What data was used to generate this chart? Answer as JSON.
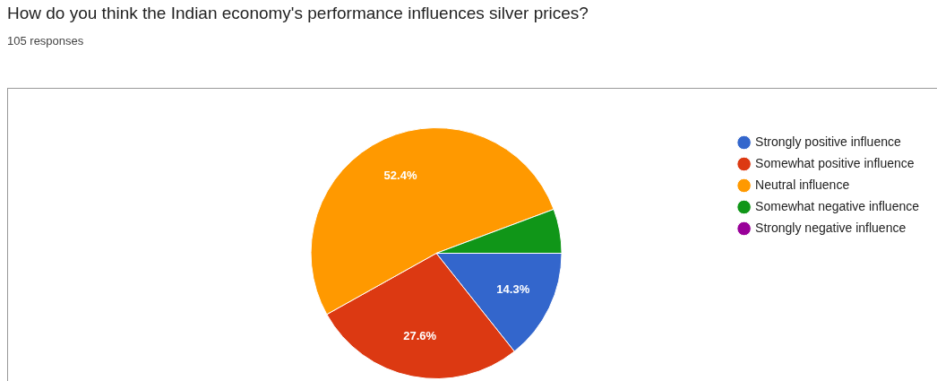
{
  "chart_data": {
    "type": "pie",
    "title": "How do you think the Indian economy's performance influences silver prices?",
    "subtitle": "105 responses",
    "categories": [
      "Strongly positive influence",
      "Somewhat positive influence",
      "Neutral influence",
      "Somewhat negative influence",
      "Strongly negative influence"
    ],
    "values": [
      14.3,
      27.6,
      52.4,
      5.7,
      0
    ],
    "colors": [
      "#3366cc",
      "#dc3912",
      "#ff9900",
      "#109618",
      "#990099"
    ],
    "value_labels": [
      "14.3%",
      "27.6%",
      "52.4%",
      null,
      null
    ],
    "legend": "right"
  }
}
